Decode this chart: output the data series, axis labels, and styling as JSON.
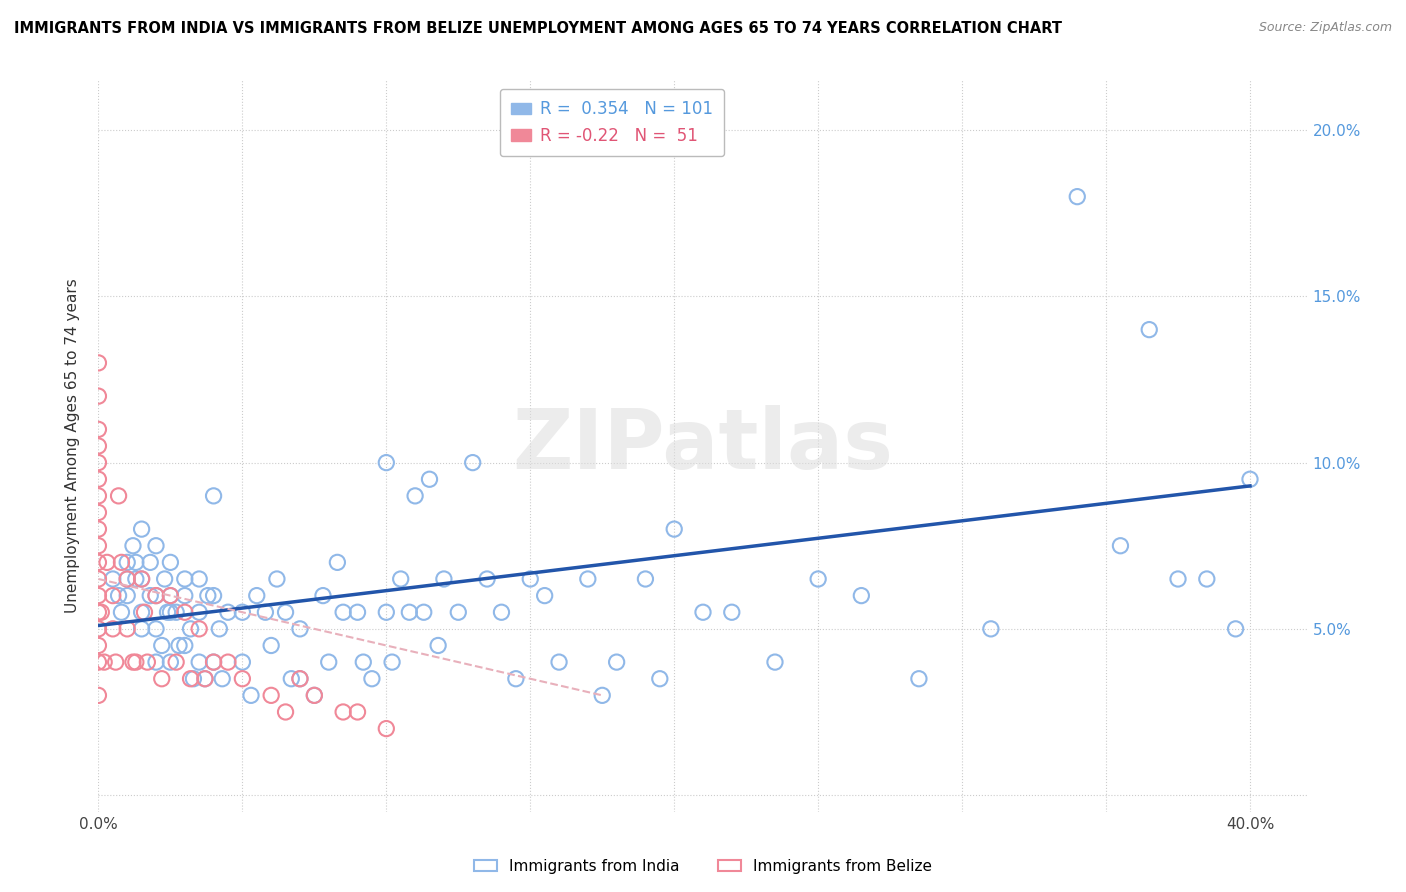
{
  "title": "IMMIGRANTS FROM INDIA VS IMMIGRANTS FROM BELIZE UNEMPLOYMENT AMONG AGES 65 TO 74 YEARS CORRELATION CHART",
  "source": "Source: ZipAtlas.com",
  "ylabel": "Unemployment Among Ages 65 to 74 years",
  "xlim": [
    0.0,
    0.42
  ],
  "ylim": [
    -0.005,
    0.215
  ],
  "plot_xlim": [
    0.0,
    0.4
  ],
  "plot_ylim": [
    0.0,
    0.2
  ],
  "xticks": [
    0.0,
    0.05,
    0.1,
    0.15,
    0.2,
    0.25,
    0.3,
    0.35,
    0.4
  ],
  "yticks": [
    0.0,
    0.05,
    0.1,
    0.15,
    0.2
  ],
  "india_R": 0.354,
  "india_N": 101,
  "belize_R": -0.22,
  "belize_N": 51,
  "india_color": "#90b8e8",
  "india_edge_color": "#90b8e8",
  "belize_color": "#f08898",
  "belize_edge_color": "#f08898",
  "india_trend_color": "#2255aa",
  "belize_trend_color": "#e8b0bb",
  "watermark": "ZIPatlas",
  "india_legend_color": "#5599dd",
  "belize_legend_color": "#e05575",
  "india_x": [
    0.005,
    0.007,
    0.008,
    0.01,
    0.01,
    0.01,
    0.012,
    0.013,
    0.013,
    0.015,
    0.015,
    0.015,
    0.015,
    0.018,
    0.018,
    0.02,
    0.02,
    0.02,
    0.02,
    0.022,
    0.023,
    0.024,
    0.025,
    0.025,
    0.025,
    0.025,
    0.027,
    0.028,
    0.03,
    0.03,
    0.03,
    0.032,
    0.033,
    0.035,
    0.035,
    0.035,
    0.037,
    0.038,
    0.04,
    0.04,
    0.042,
    0.043,
    0.045,
    0.05,
    0.05,
    0.053,
    0.055,
    0.058,
    0.06,
    0.062,
    0.065,
    0.067,
    0.07,
    0.07,
    0.075,
    0.078,
    0.08,
    0.083,
    0.085,
    0.09,
    0.092,
    0.095,
    0.1,
    0.1,
    0.102,
    0.105,
    0.108,
    0.11,
    0.113,
    0.115,
    0.118,
    0.12,
    0.125,
    0.13,
    0.135,
    0.14,
    0.145,
    0.15,
    0.155,
    0.16,
    0.17,
    0.175,
    0.18,
    0.19,
    0.195,
    0.2,
    0.21,
    0.22,
    0.235,
    0.25,
    0.265,
    0.285,
    0.31,
    0.34,
    0.355,
    0.365,
    0.375,
    0.385,
    0.395,
    0.4,
    0.04
  ],
  "india_y": [
    0.065,
    0.06,
    0.055,
    0.07,
    0.06,
    0.065,
    0.075,
    0.065,
    0.07,
    0.065,
    0.055,
    0.05,
    0.08,
    0.06,
    0.07,
    0.05,
    0.06,
    0.04,
    0.075,
    0.045,
    0.065,
    0.055,
    0.06,
    0.04,
    0.055,
    0.07,
    0.055,
    0.045,
    0.045,
    0.06,
    0.065,
    0.05,
    0.035,
    0.04,
    0.055,
    0.065,
    0.035,
    0.06,
    0.04,
    0.06,
    0.05,
    0.035,
    0.055,
    0.04,
    0.055,
    0.03,
    0.06,
    0.055,
    0.045,
    0.065,
    0.055,
    0.035,
    0.035,
    0.05,
    0.03,
    0.06,
    0.04,
    0.07,
    0.055,
    0.055,
    0.04,
    0.035,
    0.1,
    0.055,
    0.04,
    0.065,
    0.055,
    0.09,
    0.055,
    0.095,
    0.045,
    0.065,
    0.055,
    0.1,
    0.065,
    0.055,
    0.035,
    0.065,
    0.06,
    0.04,
    0.065,
    0.03,
    0.04,
    0.065,
    0.035,
    0.08,
    0.055,
    0.055,
    0.04,
    0.065,
    0.06,
    0.035,
    0.05,
    0.18,
    0.075,
    0.14,
    0.065,
    0.065,
    0.05,
    0.095,
    0.09
  ],
  "belize_x": [
    0.0,
    0.0,
    0.0,
    0.0,
    0.0,
    0.0,
    0.0,
    0.0,
    0.0,
    0.0,
    0.0,
    0.0,
    0.0,
    0.0,
    0.0,
    0.0,
    0.0,
    0.0,
    0.001,
    0.002,
    0.003,
    0.005,
    0.005,
    0.006,
    0.007,
    0.008,
    0.01,
    0.01,
    0.012,
    0.013,
    0.015,
    0.016,
    0.017,
    0.02,
    0.022,
    0.025,
    0.027,
    0.03,
    0.032,
    0.035,
    0.037,
    0.04,
    0.045,
    0.05,
    0.06,
    0.065,
    0.07,
    0.075,
    0.085,
    0.09,
    0.1
  ],
  "belize_y": [
    0.13,
    0.12,
    0.11,
    0.105,
    0.1,
    0.095,
    0.09,
    0.085,
    0.08,
    0.075,
    0.07,
    0.065,
    0.06,
    0.055,
    0.05,
    0.045,
    0.04,
    0.03,
    0.055,
    0.04,
    0.07,
    0.05,
    0.06,
    0.04,
    0.09,
    0.07,
    0.05,
    0.065,
    0.04,
    0.04,
    0.065,
    0.055,
    0.04,
    0.06,
    0.035,
    0.06,
    0.04,
    0.055,
    0.035,
    0.05,
    0.035,
    0.04,
    0.04,
    0.035,
    0.03,
    0.025,
    0.035,
    0.03,
    0.025,
    0.025,
    0.02
  ],
  "india_trend_x_start": 0.0,
  "india_trend_x_end": 0.4,
  "india_trend_y_start": 0.051,
  "india_trend_y_end": 0.093,
  "belize_trend_x_start": 0.0,
  "belize_trend_x_end": 0.175,
  "belize_trend_y_start": 0.065,
  "belize_trend_y_end": 0.03
}
